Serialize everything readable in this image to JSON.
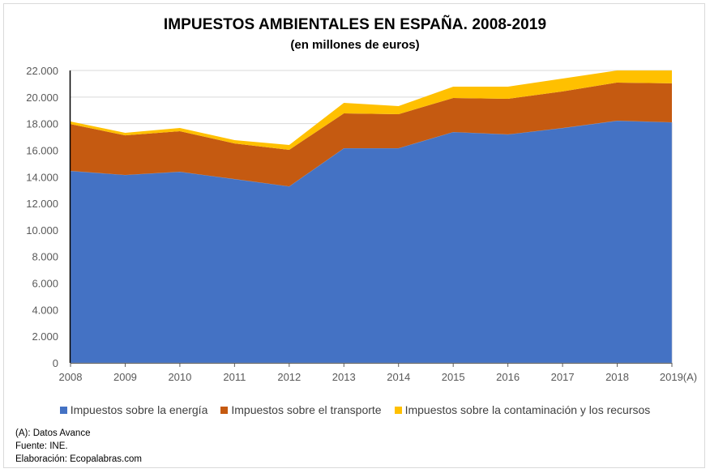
{
  "chart_data": {
    "type": "area",
    "stacked": true,
    "title": "IMPUESTOS AMBIENTALES EN ESPAÑA. 2008-2019",
    "subtitle": "(en millones de euros)",
    "xlabel": "",
    "ylabel": "",
    "categories": [
      "2008",
      "2009",
      "2010",
      "2011",
      "2012",
      "2013",
      "2014",
      "2015",
      "2016",
      "2017",
      "2018",
      "2019(A)"
    ],
    "ylim": [
      0,
      22000
    ],
    "yticks": [
      0,
      2000,
      4000,
      6000,
      8000,
      10000,
      12000,
      14000,
      16000,
      18000,
      20000,
      22000
    ],
    "ytick_labels": [
      "0",
      "2.000",
      "4.000",
      "6.000",
      "8.000",
      "10.000",
      "12.000",
      "14.000",
      "16.000",
      "18.000",
      "20.000",
      "22.000"
    ],
    "grid": true,
    "legend_position": "bottom",
    "series": [
      {
        "name": "Impuestos sobre la energía",
        "color": "#4472c4",
        "values": [
          14440,
          14140,
          14380,
          13830,
          13280,
          16150,
          16150,
          17370,
          17190,
          17670,
          18220,
          18100
        ]
      },
      {
        "name": "Impuestos sobre el transporte",
        "color": "#c55a11",
        "values": [
          3520,
          2980,
          3050,
          2680,
          2750,
          2620,
          2560,
          2560,
          2680,
          2750,
          2870,
          2930
        ]
      },
      {
        "name": "Impuestos sobre la contaminación y los recursos",
        "color": "#ffc000",
        "values": [
          200,
          190,
          240,
          250,
          360,
          790,
          610,
          850,
          910,
          970,
          910,
          970
        ]
      }
    ]
  },
  "notes": [
    "(A): Datos Avance",
    "Fuente: INE.",
    "Elaboración: Ecopalabras.com"
  ]
}
